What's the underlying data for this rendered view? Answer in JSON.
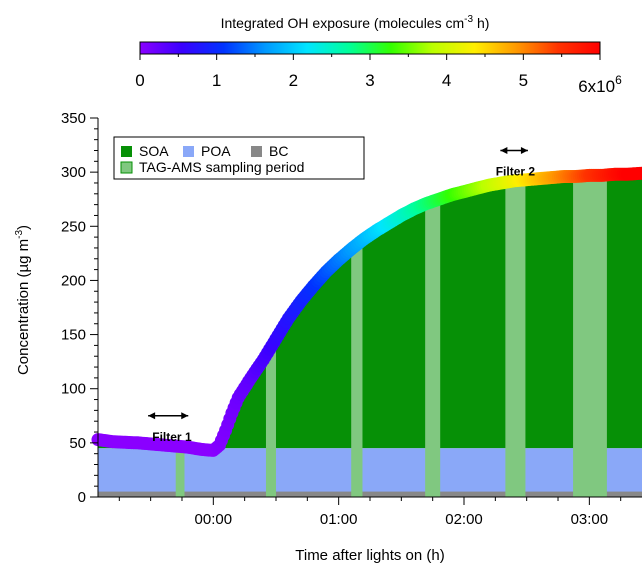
{
  "chart_data": {
    "type": "area",
    "colorbar": {
      "title_main": "Integrated OH exposure (molecules cm",
      "title_sup": "-3",
      "title_end": " h)",
      "ticks": [
        "0",
        "1",
        "2",
        "3",
        "4",
        "5"
      ],
      "tick_values": [
        0,
        1,
        2,
        3,
        4,
        5
      ],
      "last_tick_base": "6x10",
      "last_tick_sup": "6",
      "last_tick_value": 6,
      "range": [
        0,
        6
      ],
      "colors": [
        "#8a00ff",
        "#3a00ff",
        "#0033ff",
        "#0099ff",
        "#00e5ff",
        "#00ff99",
        "#33ff00",
        "#bbff00",
        "#ffee00",
        "#ff9900",
        "#ff3300",
        "#ff0000"
      ]
    },
    "x_axis": {
      "label": "Time after lights on (h)",
      "range_h": [
        -0.92,
        3.42
      ],
      "ticks": [
        {
          "label": "00:00",
          "value": 0
        },
        {
          "label": "01:00",
          "value": 1
        },
        {
          "label": "02:00",
          "value": 2
        },
        {
          "label": "03:00",
          "value": 3
        }
      ]
    },
    "y_axis": {
      "label_main": "Concentration (µg m",
      "label_sup": "-3",
      "label_end": ")",
      "range": [
        0,
        350
      ],
      "ticks": [
        "0",
        "50",
        "100",
        "150",
        "200",
        "250",
        "300",
        "350"
      ],
      "tick_values": [
        0,
        50,
        100,
        150,
        200,
        250,
        300,
        350
      ]
    },
    "legend": {
      "position": "top-left",
      "items": [
        {
          "label": "SOA",
          "color": "#069006"
        },
        {
          "label": "POA",
          "color": "#8aa8f8"
        },
        {
          "label": "BC",
          "color": "#888888"
        },
        {
          "label": "TAG-AMS sampling period",
          "color": "#80c880"
        }
      ]
    },
    "bc_level": 5,
    "poa_level": 45,
    "series_total": {
      "x_h": [
        -0.92,
        -0.8,
        -0.6,
        -0.4,
        -0.2,
        -0.1,
        0.0,
        0.05,
        0.1,
        0.15,
        0.2,
        0.3,
        0.4,
        0.5,
        0.6,
        0.7,
        0.8,
        0.9,
        1.0,
        1.1,
        1.2,
        1.3,
        1.4,
        1.5,
        1.6,
        1.7,
        1.8,
        1.9,
        2.0,
        2.1,
        2.2,
        2.3,
        2.4,
        2.5,
        2.6,
        2.7,
        2.8,
        2.9,
        3.0,
        3.1,
        3.2,
        3.3,
        3.42
      ],
      "y": [
        53,
        51,
        50,
        48,
        46,
        44,
        43,
        48,
        62,
        78,
        92,
        110,
        127,
        146,
        165,
        181,
        195,
        208,
        219,
        229,
        238,
        246,
        253,
        260,
        266,
        271,
        275,
        279,
        282,
        285,
        288,
        290,
        292,
        293,
        294,
        295,
        296,
        296,
        297,
        297,
        298,
        298,
        299
      ],
      "oh_exposure": [
        0,
        0,
        0,
        0,
        0,
        0,
        0,
        0.05,
        0.1,
        0.15,
        0.2,
        0.3,
        0.45,
        0.6,
        0.75,
        0.9,
        1.05,
        1.25,
        1.45,
        1.65,
        1.85,
        2.05,
        2.25,
        2.45,
        2.65,
        2.85,
        3.05,
        3.25,
        3.45,
        3.65,
        3.85,
        4.05,
        4.25,
        4.45,
        4.65,
        4.85,
        5.05,
        5.25,
        5.45,
        5.65,
        5.85,
        6.0,
        6.1
      ]
    },
    "sampling_periods_h": [
      [
        -0.3,
        -0.23
      ],
      [
        0.42,
        0.5
      ],
      [
        1.1,
        1.19
      ],
      [
        1.69,
        1.81
      ],
      [
        2.33,
        2.49
      ],
      [
        2.87,
        3.14
      ]
    ],
    "annotations": [
      {
        "text": "Filter 1",
        "x_h": -0.33,
        "x_from_h": -0.52,
        "x_to_h": -0.2,
        "y": 75
      },
      {
        "text": "Filter 2",
        "x_h": 2.41,
        "x_from_h": 2.29,
        "x_to_h": 2.51,
        "y": 320
      }
    ],
    "grid": false
  }
}
